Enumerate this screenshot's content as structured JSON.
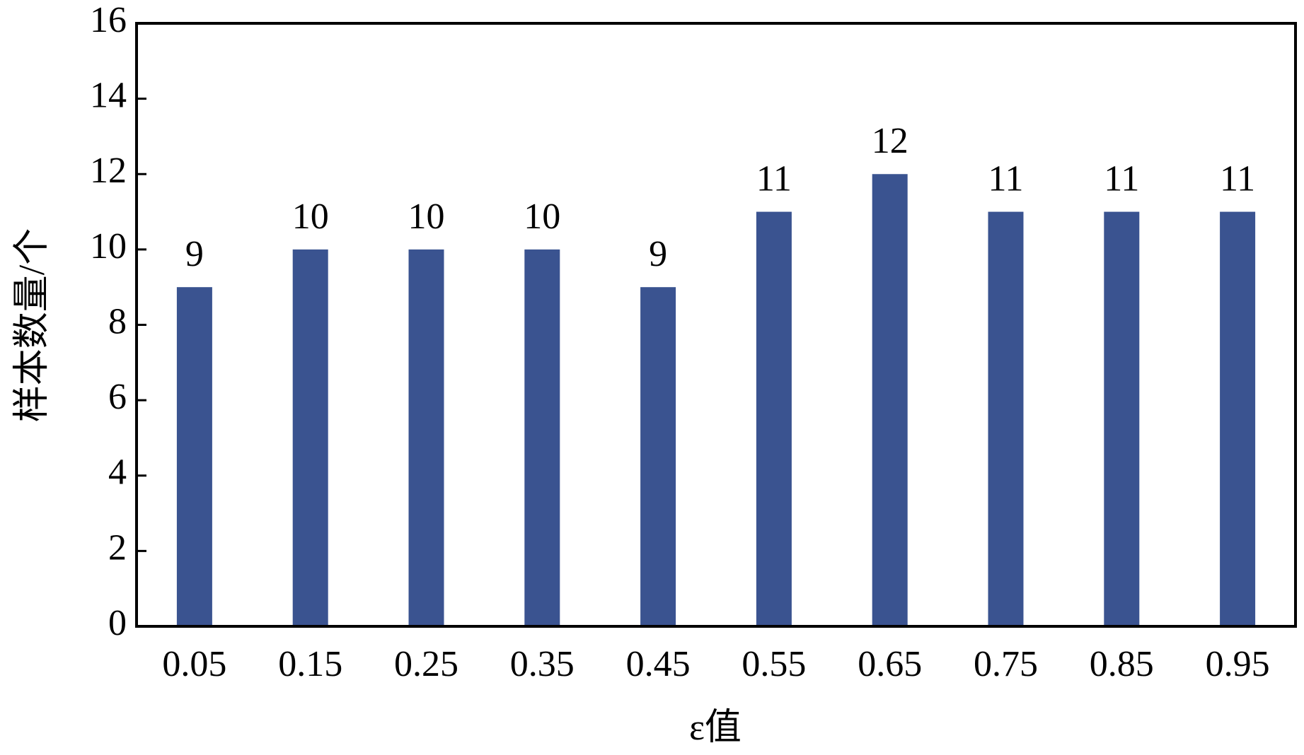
{
  "chart_data": {
    "type": "bar",
    "x_label": "ε值",
    "y_label": "样本数量/个",
    "categories": [
      "0.05",
      "0.15",
      "0.25",
      "0.35",
      "0.45",
      "0.55",
      "0.65",
      "0.75",
      "0.85",
      "0.95"
    ],
    "values": [
      9,
      10,
      10,
      10,
      9,
      11,
      12,
      11,
      11,
      11
    ],
    "color": "#3a5390",
    "ylim": [
      0,
      16
    ],
    "yticks": [
      0,
      2,
      4,
      6,
      8,
      10,
      12,
      14,
      16
    ],
    "grid": false,
    "data_labels": true
  }
}
